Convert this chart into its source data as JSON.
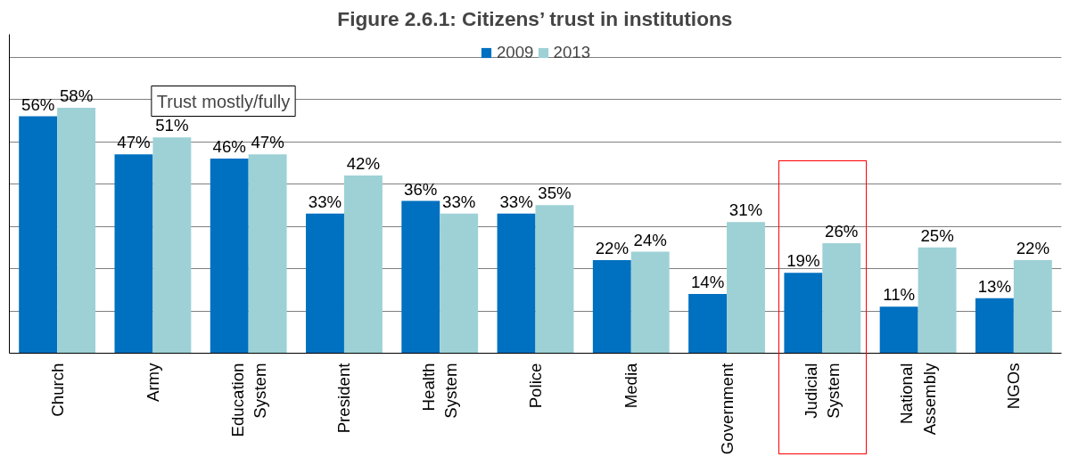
{
  "chart_data": {
    "type": "bar",
    "title": "Figure 2.6.1: Citizens’ trust in institutions",
    "categories": [
      "Church",
      "Army",
      "Education System",
      "President",
      "Health System",
      "Police",
      "Media",
      "Government",
      "Judicial System",
      "National Assembly",
      "NGOs"
    ],
    "series": [
      {
        "name": "2009",
        "color": "#0070c0",
        "values": [
          56,
          47,
          46,
          33,
          36,
          33,
          22,
          14,
          19,
          11,
          13
        ],
        "value_labels": [
          "56%",
          "47%",
          "46%",
          "33%",
          "36%",
          "33%",
          "22%",
          "14%",
          "19%",
          "11%",
          "13%"
        ]
      },
      {
        "name": "2013",
        "color": "#9dd1d6",
        "values": [
          58,
          51,
          47,
          42,
          33,
          35,
          24,
          31,
          26,
          25,
          22
        ],
        "value_labels": [
          "58%",
          "51%",
          "47%",
          "42%",
          "33%",
          "35%",
          "24%",
          "31%",
          "26%",
          "25%",
          "22%"
        ]
      }
    ],
    "tick_labels": "x",
    "grid": "y",
    "legend": "top",
    "annotations": [
      "Trust mostly/fully"
    ]
  }
}
